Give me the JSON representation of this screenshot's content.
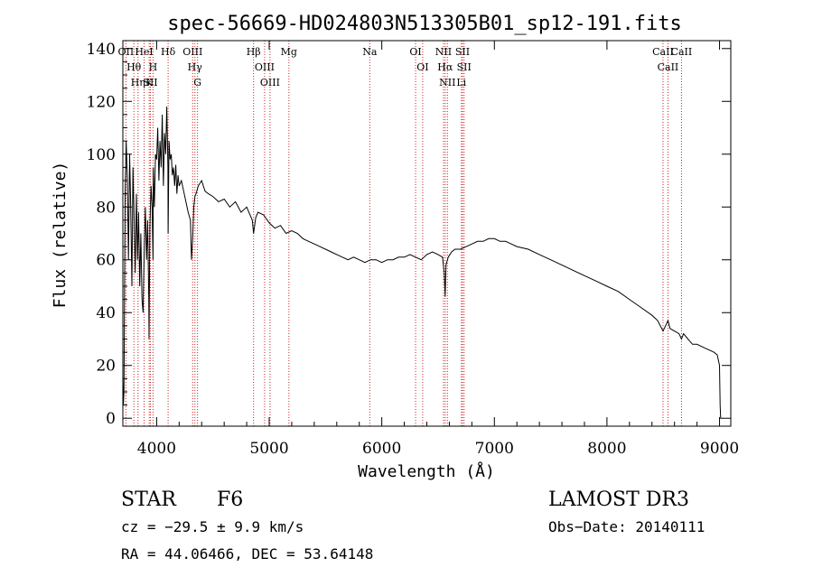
{
  "chart_data": {
    "type": "line",
    "title": "spec-56669-HD024803N513305B01_sp12-191.fits",
    "xlabel": "Wavelength (Å)",
    "ylabel": "Flux (relative)",
    "xlim": [
      3700,
      9100
    ],
    "ylim": [
      -3,
      143
    ],
    "xticks": [
      4000,
      5000,
      6000,
      7000,
      8000,
      9000
    ],
    "yticks": [
      0,
      20,
      40,
      60,
      80,
      100,
      120,
      140
    ],
    "grid": false,
    "series": [
      {
        "name": "flux",
        "x": [
          3700,
          3705,
          3710,
          3720,
          3730,
          3740,
          3750,
          3760,
          3770,
          3780,
          3790,
          3800,
          3810,
          3820,
          3830,
          3840,
          3850,
          3860,
          3870,
          3880,
          3890,
          3900,
          3910,
          3920,
          3930,
          3933,
          3936,
          3940,
          3950,
          3960,
          3968,
          3970,
          3980,
          3990,
          4000,
          4010,
          4020,
          4030,
          4040,
          4050,
          4060,
          4070,
          4080,
          4090,
          4100,
          4102,
          4110,
          4120,
          4130,
          4140,
          4150,
          4160,
          4170,
          4180,
          4190,
          4200,
          4220,
          4240,
          4260,
          4280,
          4300,
          4310,
          4320,
          4330,
          4340,
          4350,
          4370,
          4400,
          4430,
          4460,
          4500,
          4550,
          4600,
          4650,
          4700,
          4750,
          4800,
          4850,
          4861,
          4880,
          4900,
          4950,
          5000,
          5050,
          5100,
          5150,
          5200,
          5250,
          5300,
          5350,
          5400,
          5450,
          5500,
          5550,
          5600,
          5650,
          5700,
          5750,
          5800,
          5850,
          5900,
          5950,
          6000,
          6050,
          6100,
          6150,
          6200,
          6250,
          6300,
          6350,
          6400,
          6450,
          6500,
          6540,
          6555,
          6563,
          6570,
          6590,
          6620,
          6650,
          6700,
          6750,
          6800,
          6850,
          6900,
          6950,
          7000,
          7050,
          7100,
          7150,
          7200,
          7300,
          7400,
          7500,
          7600,
          7700,
          7800,
          7900,
          8000,
          8100,
          8200,
          8300,
          8400,
          8450,
          8498,
          8520,
          8542,
          8560,
          8600,
          8640,
          8662,
          8680,
          8720,
          8760,
          8800,
          8850,
          8900,
          8950,
          8980,
          9000,
          9005,
          9010,
          9020
        ],
        "y": [
          15,
          5,
          10,
          85,
          105,
          90,
          60,
          100,
          80,
          50,
          95,
          75,
          55,
          85,
          60,
          78,
          50,
          70,
          45,
          40,
          65,
          80,
          60,
          75,
          45,
          30,
          50,
          72,
          88,
          80,
          60,
          95,
          80,
          100,
          98,
          110,
          90,
          105,
          95,
          115,
          88,
          108,
          100,
          118,
          95,
          70,
          105,
          98,
          100,
          92,
          95,
          88,
          96,
          85,
          92,
          88,
          90,
          86,
          82,
          78,
          75,
          60,
          68,
          80,
          84,
          85,
          88,
          90,
          86,
          85,
          84,
          82,
          83,
          80,
          82,
          78,
          80,
          75,
          70,
          76,
          78,
          77,
          74,
          72,
          73,
          70,
          71,
          70,
          68,
          67,
          66,
          65,
          64,
          63,
          62,
          61,
          60,
          61,
          60,
          59,
          60,
          60,
          59,
          60,
          60,
          61,
          61,
          62,
          61,
          60,
          62,
          63,
          62,
          61,
          55,
          46,
          58,
          61,
          63,
          64,
          64,
          65,
          66,
          67,
          67,
          68,
          68,
          67,
          67,
          66,
          65,
          64,
          62,
          60,
          58,
          56,
          54,
          52,
          50,
          48,
          45,
          42,
          39,
          37,
          33,
          35,
          37,
          34,
          33,
          32,
          30,
          32,
          30,
          28,
          28,
          27,
          26,
          25,
          24,
          20,
          5,
          0,
          0
        ]
      }
    ],
    "lines": [
      {
        "name": "OII",
        "x": 3727
      },
      {
        "name": "Hθ",
        "x": 3798
      },
      {
        "name": "Hη",
        "x": 3835
      },
      {
        "name": "HeI",
        "x": 3889
      },
      {
        "name": "K",
        "x": 3934
      },
      {
        "name": "SII",
        "x": 3945
      },
      {
        "name": "H",
        "x": 3968
      },
      {
        "name": "Hδ",
        "x": 4102
      },
      {
        "name": "OIII",
        "x": 4320
      },
      {
        "name": "Hγ",
        "x": 4340
      },
      {
        "name": "G",
        "x": 4363
      },
      {
        "name": "Hβ",
        "x": 4861
      },
      {
        "name": "OIII",
        "x": 4959
      },
      {
        "name": "OIII",
        "x": 5007
      },
      {
        "name": "Mg",
        "x": 5175
      },
      {
        "name": "Na",
        "x": 5893
      },
      {
        "name": "OI",
        "x": 6300
      },
      {
        "name": "OI",
        "x": 6363
      },
      {
        "name": "NII",
        "x": 6548
      },
      {
        "name": "Hα",
        "x": 6563
      },
      {
        "name": "NII",
        "x": 6583
      },
      {
        "name": "Li",
        "x": 6707
      },
      {
        "name": "SII",
        "x": 6717
      },
      {
        "name": "SII",
        "x": 6731
      },
      {
        "name": "CaII",
        "x": 8498
      },
      {
        "name": "CaII",
        "x": 8542
      },
      {
        "name": "CaII",
        "x": 8662
      }
    ]
  },
  "info": {
    "class_label": "STAR",
    "subclass": "F6",
    "redshift": "cz = −29.5 ± 9.9 km/s",
    "coords": "RA =  44.06466, DEC =  53.64148",
    "survey": "LAMOST DR3",
    "obs_date": "Obs−Date: 20140111"
  },
  "colors": {
    "line_marker": "#cc2222",
    "spectrum": "#000000",
    "axis": "#000000"
  }
}
